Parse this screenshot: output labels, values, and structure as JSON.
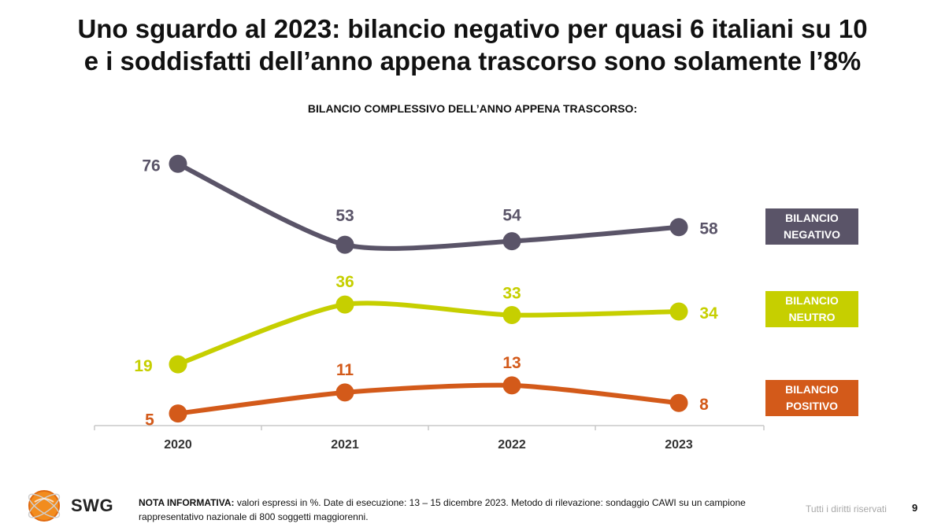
{
  "title": {
    "line1": "Uno sguardo al 2023: bilancio negativo per quasi 6 italiani su 10",
    "line2": "e i soddisfatti dell’anno appena trascorso sono solamente l’8%"
  },
  "chart_data": {
    "type": "line",
    "title": "BILANCIO COMPLESSIVO DELL’ANNO APPENA TRASCORSO:",
    "xlabel": "",
    "ylabel": "",
    "categories": [
      "2020",
      "2021",
      "2022",
      "2023"
    ],
    "ylim": [
      0,
      80
    ],
    "grid": false,
    "series": [
      {
        "name": "BILANCIO NEGATIVO",
        "legend_lines": [
          "BILANCIO",
          "NEGATIVO"
        ],
        "color": "#5a5468",
        "values": [
          76,
          53,
          54,
          58
        ]
      },
      {
        "name": "BILANCIO NEUTRO",
        "legend_lines": [
          "BILANCIO",
          "NEUTRO"
        ],
        "color": "#c6cf00",
        "values": [
          19,
          36,
          33,
          34
        ]
      },
      {
        "name": "BILANCIO POSITIVO",
        "legend_lines": [
          "BILANCIO",
          "POSITIVO"
        ],
        "color": "#d35a1a",
        "values": [
          5,
          11,
          13,
          8
        ]
      }
    ]
  },
  "footer": {
    "brand": "SWG",
    "note_label": "NOTA INFORMATIVA:",
    "note_text": " valori espressi in %. Date di esecuzione: 13 – 15 dicembre 2023. Metodo di rilevazione: sondaggio CAWI su un campione rappresentativo nazionale di 800 soggetti maggiorenni.",
    "rights": "Tutti i diritti riservati",
    "page_number": "9"
  },
  "colors": {
    "negativo": "#5a5468",
    "neutro": "#c6cf00",
    "positivo": "#d35a1a",
    "brand_orange": "#f28c1e"
  }
}
